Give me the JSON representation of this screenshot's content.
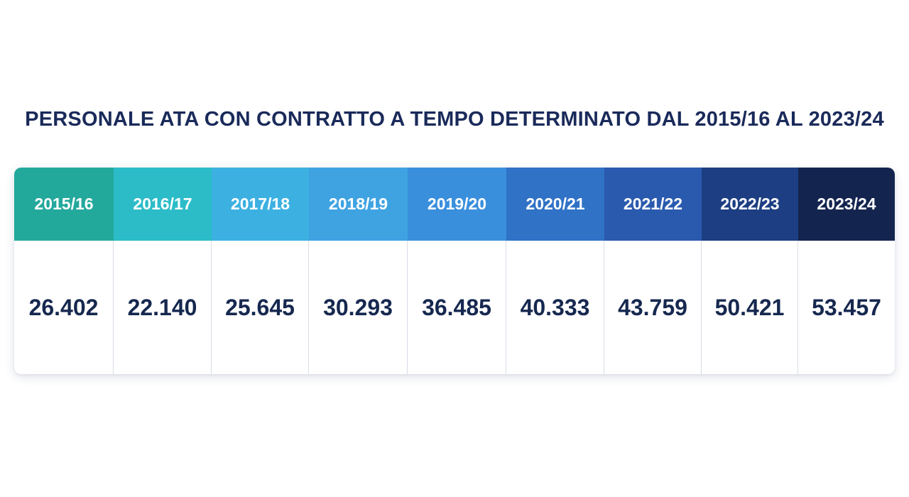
{
  "chart_data": {
    "type": "table",
    "title": "PERSONALE ATA CON CONTRATTO A TEMPO DETERMINATO DAL 2015/16 AL 2023/24",
    "columns": [
      "2015/16",
      "2016/17",
      "2017/18",
      "2018/19",
      "2019/20",
      "2020/21",
      "2021/22",
      "2022/23",
      "2023/24"
    ],
    "values": [
      "26.402",
      "22.140",
      "25.645",
      "30.293",
      "36.485",
      "40.333",
      "43.759",
      "50.421",
      "53.457"
    ],
    "header_colors": [
      "#23a89c",
      "#2bbcc8",
      "#3cb1e1",
      "#3fa3e2",
      "#3a8fdc",
      "#2f72c6",
      "#2a5aae",
      "#1d3e82",
      "#13254f"
    ]
  }
}
